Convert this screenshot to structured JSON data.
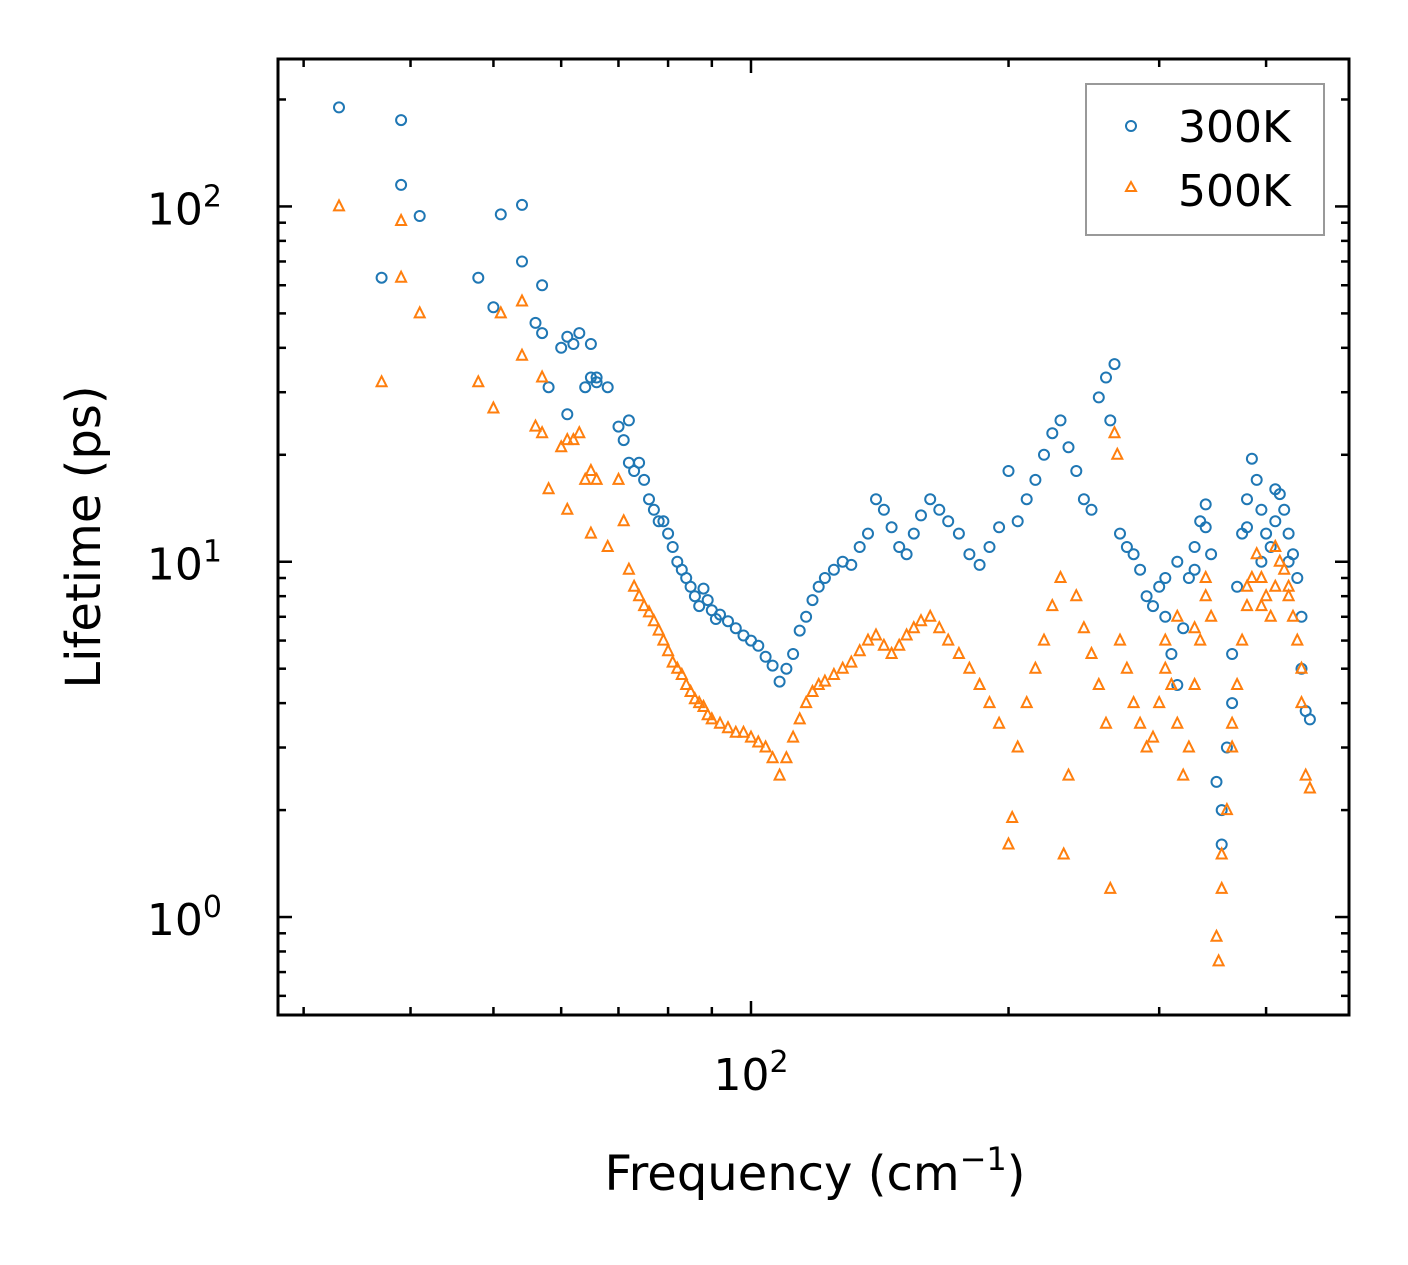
{
  "chart_data": {
    "type": "scatter",
    "title": "",
    "xlabel": "Frequency (cm",
    "xlabel_sup": "−1",
    "xlabel_end": ")",
    "ylabel": "Lifetime (ps)",
    "xscale": "log",
    "yscale": "log",
    "xlim": [
      28,
      500
    ],
    "ylim": [
      0.53,
      260
    ],
    "x_ticks": [
      {
        "value": 100,
        "base": "10",
        "exp": "2"
      }
    ],
    "y_ticks": [
      {
        "value": 1,
        "base": "10",
        "exp": "0"
      },
      {
        "value": 10,
        "base": "10",
        "exp": "1"
      },
      {
        "value": 100,
        "base": "10",
        "exp": "2"
      }
    ],
    "legend_position": "top-right",
    "series": [
      {
        "name": "300K",
        "marker": "circle",
        "color": "#1f77b4",
        "points": [
          [
            33,
            190
          ],
          [
            37,
            63
          ],
          [
            39,
            175
          ],
          [
            39,
            115
          ],
          [
            41,
            94
          ],
          [
            48,
            63
          ],
          [
            50,
            52
          ],
          [
            51,
            95
          ],
          [
            54,
            101
          ],
          [
            54,
            70
          ],
          [
            56,
            47
          ],
          [
            57,
            60
          ],
          [
            57,
            44
          ],
          [
            58,
            31
          ],
          [
            60,
            40
          ],
          [
            61,
            43
          ],
          [
            61,
            26
          ],
          [
            62,
            41
          ],
          [
            63,
            44
          ],
          [
            64,
            31
          ],
          [
            65,
            41
          ],
          [
            65,
            33
          ],
          [
            66,
            33
          ],
          [
            66,
            32
          ],
          [
            68,
            31
          ],
          [
            70,
            24
          ],
          [
            71,
            22
          ],
          [
            72,
            25
          ],
          [
            72,
            19
          ],
          [
            73,
            18
          ],
          [
            74,
            19
          ],
          [
            75,
            17
          ],
          [
            76,
            15
          ],
          [
            77,
            14
          ],
          [
            78,
            13
          ],
          [
            79,
            13
          ],
          [
            80,
            12
          ],
          [
            81,
            11
          ],
          [
            82,
            10
          ],
          [
            83,
            9.5
          ],
          [
            84,
            9.0
          ],
          [
            85,
            8.5
          ],
          [
            86,
            8.0
          ],
          [
            87,
            7.5
          ],
          [
            88,
            8.4
          ],
          [
            89,
            7.8
          ],
          [
            90,
            7.3
          ],
          [
            91,
            6.9
          ],
          [
            92,
            7.1
          ],
          [
            94,
            6.8
          ],
          [
            96,
            6.5
          ],
          [
            98,
            6.2
          ],
          [
            100,
            6.0
          ],
          [
            102,
            5.8
          ],
          [
            104,
            5.4
          ],
          [
            106,
            5.1
          ],
          [
            108,
            4.6
          ],
          [
            110,
            5.0
          ],
          [
            112,
            5.5
          ],
          [
            114,
            6.4
          ],
          [
            116,
            7.0
          ],
          [
            118,
            7.8
          ],
          [
            120,
            8.5
          ],
          [
            122,
            9.0
          ],
          [
            125,
            9.5
          ],
          [
            128,
            10.0
          ],
          [
            131,
            9.8
          ],
          [
            134,
            11.0
          ],
          [
            137,
            12.0
          ],
          [
            140,
            15.0
          ],
          [
            143,
            14.0
          ],
          [
            146,
            12.5
          ],
          [
            149,
            11.0
          ],
          [
            152,
            10.5
          ],
          [
            155,
            12.0
          ],
          [
            158,
            13.5
          ],
          [
            162,
            15.0
          ],
          [
            166,
            14.0
          ],
          [
            170,
            13.0
          ],
          [
            175,
            12.0
          ],
          [
            180,
            10.5
          ],
          [
            185,
            9.8
          ],
          [
            190,
            11.0
          ],
          [
            195,
            12.5
          ],
          [
            200,
            18.0
          ],
          [
            205,
            13.0
          ],
          [
            210,
            15.0
          ],
          [
            215,
            17.0
          ],
          [
            220,
            20.0
          ],
          [
            225,
            23.0
          ],
          [
            230,
            25.0
          ],
          [
            235,
            21.0
          ],
          [
            240,
            18.0
          ],
          [
            245,
            15.0
          ],
          [
            250,
            14.0
          ],
          [
            255,
            29.0
          ],
          [
            260,
            33.0
          ],
          [
            263,
            25.0
          ],
          [
            266,
            36.0
          ],
          [
            270,
            12.0
          ],
          [
            275,
            11.0
          ],
          [
            280,
            10.5
          ],
          [
            285,
            9.5
          ],
          [
            290,
            8.0
          ],
          [
            295,
            7.5
          ],
          [
            300,
            8.5
          ],
          [
            305,
            7.0
          ],
          [
            310,
            5.5
          ],
          [
            315,
            4.5
          ],
          [
            320,
            6.5
          ],
          [
            325,
            9.0
          ],
          [
            330,
            11.0
          ],
          [
            335,
            13.0
          ],
          [
            340,
            14.5
          ],
          [
            345,
            10.5
          ],
          [
            350,
            2.4
          ],
          [
            355,
            1.6
          ],
          [
            360,
            3.0
          ],
          [
            365,
            5.5
          ],
          [
            370,
            8.5
          ],
          [
            375,
            12.0
          ],
          [
            380,
            15.0
          ],
          [
            385,
            19.5
          ],
          [
            390,
            17.0
          ],
          [
            395,
            14.0
          ],
          [
            400,
            12.0
          ],
          [
            405,
            11.0
          ],
          [
            410,
            13.0
          ],
          [
            415,
            15.5
          ],
          [
            420,
            14.0
          ],
          [
            425,
            12.0
          ],
          [
            430,
            10.5
          ],
          [
            435,
            9.0
          ],
          [
            440,
            5.0
          ],
          [
            445,
            3.8
          ],
          [
            450,
            3.6
          ],
          [
            305,
            9.0
          ],
          [
            315,
            10.0
          ],
          [
            330,
            9.5
          ],
          [
            340,
            12.5
          ],
          [
            355,
            2.0
          ],
          [
            365,
            4.0
          ],
          [
            380,
            12.5
          ],
          [
            395,
            10.0
          ],
          [
            410,
            16.0
          ],
          [
            425,
            10.0
          ],
          [
            440,
            7.0
          ]
        ]
      },
      {
        "name": "500K",
        "marker": "triangle",
        "color": "#ff7f0e",
        "points": [
          [
            33,
            100
          ],
          [
            37,
            32
          ],
          [
            39,
            91
          ],
          [
            39,
            63
          ],
          [
            41,
            50
          ],
          [
            48,
            32
          ],
          [
            50,
            27
          ],
          [
            51,
            50
          ],
          [
            54,
            54
          ],
          [
            54,
            38
          ],
          [
            56,
            24
          ],
          [
            57,
            33
          ],
          [
            57,
            23
          ],
          [
            58,
            16
          ],
          [
            60,
            21
          ],
          [
            61,
            22
          ],
          [
            61,
            14
          ],
          [
            62,
            22
          ],
          [
            63,
            23
          ],
          [
            64,
            17
          ],
          [
            65,
            18
          ],
          [
            65,
            12
          ],
          [
            66,
            17
          ],
          [
            68,
            11
          ],
          [
            70,
            17
          ],
          [
            71,
            13
          ],
          [
            72,
            9.5
          ],
          [
            73,
            8.5
          ],
          [
            74,
            8.0
          ],
          [
            75,
            7.5
          ],
          [
            76,
            7.2
          ],
          [
            77,
            6.8
          ],
          [
            78,
            6.4
          ],
          [
            79,
            6.0
          ],
          [
            80,
            5.6
          ],
          [
            81,
            5.2
          ],
          [
            82,
            5.0
          ],
          [
            83,
            4.8
          ],
          [
            84,
            4.5
          ],
          [
            85,
            4.3
          ],
          [
            86,
            4.1
          ],
          [
            87,
            4.0
          ],
          [
            88,
            3.9
          ],
          [
            89,
            3.7
          ],
          [
            90,
            3.6
          ],
          [
            92,
            3.5
          ],
          [
            94,
            3.4
          ],
          [
            96,
            3.3
          ],
          [
            98,
            3.3
          ],
          [
            100,
            3.2
          ],
          [
            102,
            3.1
          ],
          [
            104,
            3.0
          ],
          [
            106,
            2.8
          ],
          [
            108,
            2.5
          ],
          [
            110,
            2.8
          ],
          [
            112,
            3.2
          ],
          [
            114,
            3.6
          ],
          [
            116,
            4.0
          ],
          [
            118,
            4.3
          ],
          [
            120,
            4.5
          ],
          [
            122,
            4.6
          ],
          [
            125,
            4.8
          ],
          [
            128,
            5.0
          ],
          [
            131,
            5.2
          ],
          [
            134,
            5.6
          ],
          [
            137,
            6.0
          ],
          [
            140,
            6.2
          ],
          [
            143,
            5.8
          ],
          [
            146,
            5.5
          ],
          [
            149,
            5.8
          ],
          [
            152,
            6.2
          ],
          [
            155,
            6.5
          ],
          [
            158,
            6.8
          ],
          [
            162,
            7.0
          ],
          [
            166,
            6.5
          ],
          [
            170,
            6.0
          ],
          [
            175,
            5.5
          ],
          [
            180,
            5.0
          ],
          [
            185,
            4.5
          ],
          [
            190,
            4.0
          ],
          [
            195,
            3.5
          ],
          [
            200,
            1.6
          ],
          [
            202,
            1.9
          ],
          [
            205,
            3.0
          ],
          [
            210,
            4.0
          ],
          [
            215,
            5.0
          ],
          [
            220,
            6.0
          ],
          [
            225,
            7.5
          ],
          [
            230,
            9.0
          ],
          [
            232,
            1.5
          ],
          [
            235,
            2.5
          ],
          [
            240,
            8.0
          ],
          [
            245,
            6.5
          ],
          [
            250,
            5.5
          ],
          [
            255,
            4.5
          ],
          [
            260,
            3.5
          ],
          [
            263,
            1.2
          ],
          [
            266,
            23.0
          ],
          [
            268,
            20.0
          ],
          [
            270,
            6.0
          ],
          [
            275,
            5.0
          ],
          [
            280,
            4.0
          ],
          [
            285,
            3.5
          ],
          [
            290,
            3.0
          ],
          [
            295,
            3.2
          ],
          [
            300,
            4.0
          ],
          [
            305,
            5.0
          ],
          [
            310,
            4.5
          ],
          [
            315,
            3.5
          ],
          [
            320,
            2.5
          ],
          [
            325,
            3.0
          ],
          [
            330,
            4.5
          ],
          [
            335,
            6.0
          ],
          [
            340,
            8.0
          ],
          [
            345,
            7.0
          ],
          [
            350,
            0.88
          ],
          [
            352,
            0.75
          ],
          [
            355,
            1.2
          ],
          [
            360,
            2.0
          ],
          [
            365,
            3.0
          ],
          [
            370,
            4.5
          ],
          [
            375,
            6.0
          ],
          [
            380,
            7.5
          ],
          [
            385,
            9.0
          ],
          [
            390,
            10.5
          ],
          [
            395,
            9.0
          ],
          [
            400,
            8.0
          ],
          [
            405,
            7.0
          ],
          [
            410,
            8.5
          ],
          [
            415,
            10.0
          ],
          [
            420,
            9.5
          ],
          [
            425,
            8.0
          ],
          [
            430,
            7.0
          ],
          [
            435,
            6.0
          ],
          [
            440,
            4.0
          ],
          [
            445,
            2.5
          ],
          [
            450,
            2.3
          ],
          [
            305,
            6.0
          ],
          [
            315,
            7.0
          ],
          [
            330,
            6.5
          ],
          [
            340,
            9.0
          ],
          [
            355,
            1.5
          ],
          [
            365,
            3.5
          ],
          [
            380,
            8.5
          ],
          [
            395,
            7.5
          ],
          [
            410,
            11.0
          ],
          [
            425,
            8.5
          ],
          [
            440,
            5.0
          ]
        ]
      }
    ]
  }
}
